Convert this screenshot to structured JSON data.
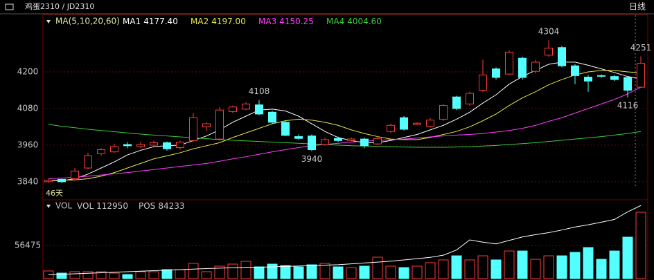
{
  "header": {
    "symbol": "鸡蛋2310 / JD2310",
    "period": "日线"
  },
  "chart_data": [
    {
      "type": "candlestick",
      "legend_title": "MA(5,10,20,60)",
      "days_label": "46天",
      "up_color": "#ff3c3c",
      "down_color": "#54ffff",
      "open": [
        3840,
        3848,
        3850,
        3885,
        3932,
        3938,
        3962,
        3955,
        3960,
        3968,
        3952,
        3975,
        4020,
        3980,
        4070,
        4078,
        4092,
        4068,
        4035,
        3988,
        3990,
        3962,
        3982,
        3975,
        3980,
        3964,
        4005,
        4050,
        4028,
        4022,
        4045,
        4118,
        4095,
        4140,
        4210,
        4193,
        4245,
        4202,
        4255,
        4280,
        4220,
        4183,
        4188,
        4185,
        4182,
        4150
      ],
      "high": [
        3850,
        3850,
        3885,
        3935,
        3950,
        3965,
        3970,
        3972,
        3975,
        3972,
        3975,
        4065,
        4035,
        4085,
        4090,
        4100,
        4108,
        4072,
        4040,
        3995,
        3995,
        3985,
        3988,
        3985,
        3985,
        3990,
        4030,
        4055,
        4035,
        4050,
        4095,
        4122,
        4135,
        4240,
        4215,
        4270,
        4250,
        4240,
        4304,
        4285,
        4225,
        4190,
        4192,
        4190,
        4185,
        4251
      ],
      "low": [
        3835,
        3836,
        3845,
        3880,
        3925,
        3935,
        3950,
        3950,
        3955,
        3942,
        3945,
        3970,
        4005,
        3975,
        4065,
        4075,
        4058,
        4030,
        3990,
        3978,
        3940,
        3958,
        3970,
        3972,
        3950,
        3960,
        4000,
        4008,
        4025,
        4018,
        4040,
        4075,
        4090,
        4135,
        4175,
        4190,
        4175,
        4195,
        4250,
        4215,
        4160,
        4135,
        4180,
        4170,
        4116,
        4148
      ],
      "close": [
        3845,
        3840,
        3875,
        3925,
        3945,
        3955,
        3958,
        3962,
        3968,
        3948,
        3970,
        4050,
        4030,
        4075,
        4085,
        4095,
        4062,
        4035,
        3992,
        3982,
        3945,
        3978,
        3975,
        3980,
        3958,
        3982,
        4025,
        4012,
        4032,
        4042,
        4090,
        4080,
        4130,
        4190,
        4182,
        4265,
        4182,
        4232,
        4278,
        4220,
        4188,
        4170,
        4186,
        4175,
        4140,
        4228
      ],
      "annotations": [
        4108,
        3940,
        4304,
        4251,
        4116
      ],
      "ylim": [
        3783,
        4386
      ],
      "yticks": [
        3840,
        3960,
        4080,
        4200
      ],
      "grid": true,
      "ma": [
        {
          "name": "MA1",
          "current": "4177.40",
          "color": "#ffffff",
          "values": [
            3845,
            3843,
            3850,
            3865,
            3885,
            3905,
            3928,
            3943,
            3955,
            3958,
            3960,
            3975,
            3990,
            4010,
            4035,
            4055,
            4075,
            4078,
            4072,
            4055,
            4030,
            4005,
            3985,
            3975,
            3968,
            3968,
            3975,
            3985,
            3995,
            4010,
            4025,
            4045,
            4068,
            4098,
            4125,
            4160,
            4185,
            4205,
            4225,
            4232,
            4232,
            4222,
            4210,
            4198,
            4185,
            4177.4
          ]
        },
        {
          "name": "MA2",
          "current": "4197.00",
          "color": "#e8e84a",
          "values": [
            3845,
            3845,
            3846,
            3850,
            3858,
            3870,
            3885,
            3900,
            3915,
            3925,
            3935,
            3948,
            3958,
            3968,
            3985,
            4000,
            4015,
            4030,
            4040,
            4045,
            4042,
            4035,
            4025,
            4010,
            3998,
            3988,
            3980,
            3978,
            3978,
            3985,
            3995,
            4005,
            4020,
            4040,
            4062,
            4090,
            4115,
            4135,
            4158,
            4175,
            4190,
            4200,
            4205,
            4205,
            4200,
            4197
          ]
        },
        {
          "name": "MA3",
          "current": "4150.25",
          "color": "#ff40ff",
          "values": [
            3850,
            3852,
            3855,
            3858,
            3862,
            3866,
            3870,
            3875,
            3880,
            3885,
            3890,
            3895,
            3900,
            3907,
            3915,
            3922,
            3930,
            3938,
            3945,
            3952,
            3958,
            3962,
            3966,
            3970,
            3973,
            3975,
            3978,
            3980,
            3983,
            3987,
            3990,
            3993,
            3995,
            3998,
            4003,
            4008,
            4015,
            4025,
            4038,
            4050,
            4065,
            4080,
            4095,
            4110,
            4128,
            4150.25
          ]
        },
        {
          "name": "MA4",
          "current": "4004.60",
          "color": "#3ccc3c",
          "values": [
            4028,
            4022,
            4017,
            4012,
            4008,
            4004,
            4000,
            3996,
            3993,
            3990,
            3987,
            3984,
            3981,
            3978,
            3976,
            3974,
            3972,
            3970,
            3968,
            3966,
            3964,
            3962,
            3960,
            3958,
            3957,
            3956,
            3955,
            3954,
            3953,
            3953,
            3953,
            3954,
            3955,
            3957,
            3959,
            3962,
            3965,
            3968,
            3972,
            3976,
            3980,
            3984,
            3988,
            3993,
            3998,
            4004.6
          ]
        }
      ]
    },
    {
      "type": "bar",
      "title": "VOL",
      "ylim": [
        0,
        132950
      ],
      "yticks": [
        56475
      ],
      "y2lim": [
        0,
        90000
      ],
      "series": [
        {
          "name": "VOL",
          "color": "#ff3c3c",
          "values": [
            13000,
            9400,
            11800,
            11800,
            11800,
            9400,
            7000,
            11800,
            11800,
            15300,
            15300,
            25900,
            11800,
            21200,
            24700,
            29400,
            20000,
            24700,
            22300,
            20000,
            23500,
            25900,
            20000,
            18800,
            21200,
            36500,
            21200,
            18800,
            21200,
            27100,
            31800,
            38800,
            31800,
            38800,
            31800,
            47000,
            47000,
            32900,
            38800,
            38800,
            44700,
            52900,
            32900,
            47000,
            70600,
            112950
          ]
        },
        {
          "name": "POS",
          "axis": "y2",
          "color": "#ffffff",
          "values": [
            4400,
            5000,
            5600,
            6200,
            6800,
            7400,
            8000,
            8600,
            9200,
            9800,
            10400,
            11000,
            11500,
            12000,
            12500,
            13000,
            13100,
            13500,
            14000,
            14500,
            15000,
            15500,
            16000,
            17000,
            18000,
            19000,
            20100,
            21500,
            23000,
            24500,
            27000,
            33000,
            44600,
            42000,
            40000,
            44000,
            48000,
            50700,
            53000,
            56000,
            59400,
            62000,
            65000,
            68200,
            76900,
            84233
          ]
        }
      ]
    }
  ]
}
